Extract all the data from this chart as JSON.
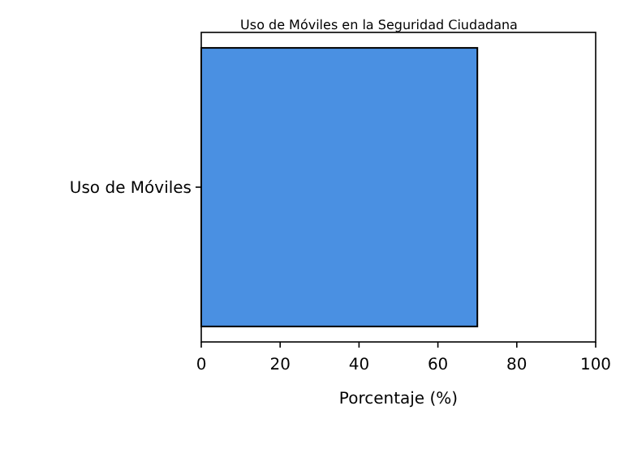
{
  "chart_data": {
    "type": "bar",
    "orientation": "horizontal",
    "title": "Uso de Móviles en la Seguridad Ciudadana",
    "xlabel": "Porcentaje (%)",
    "categories": [
      "Uso de Móviles"
    ],
    "values": [
      70
    ],
    "color": "#4a90e2",
    "xlim": [
      0,
      100
    ],
    "xticks": [
      0,
      20,
      40,
      60,
      80,
      100
    ],
    "grid": false
  }
}
